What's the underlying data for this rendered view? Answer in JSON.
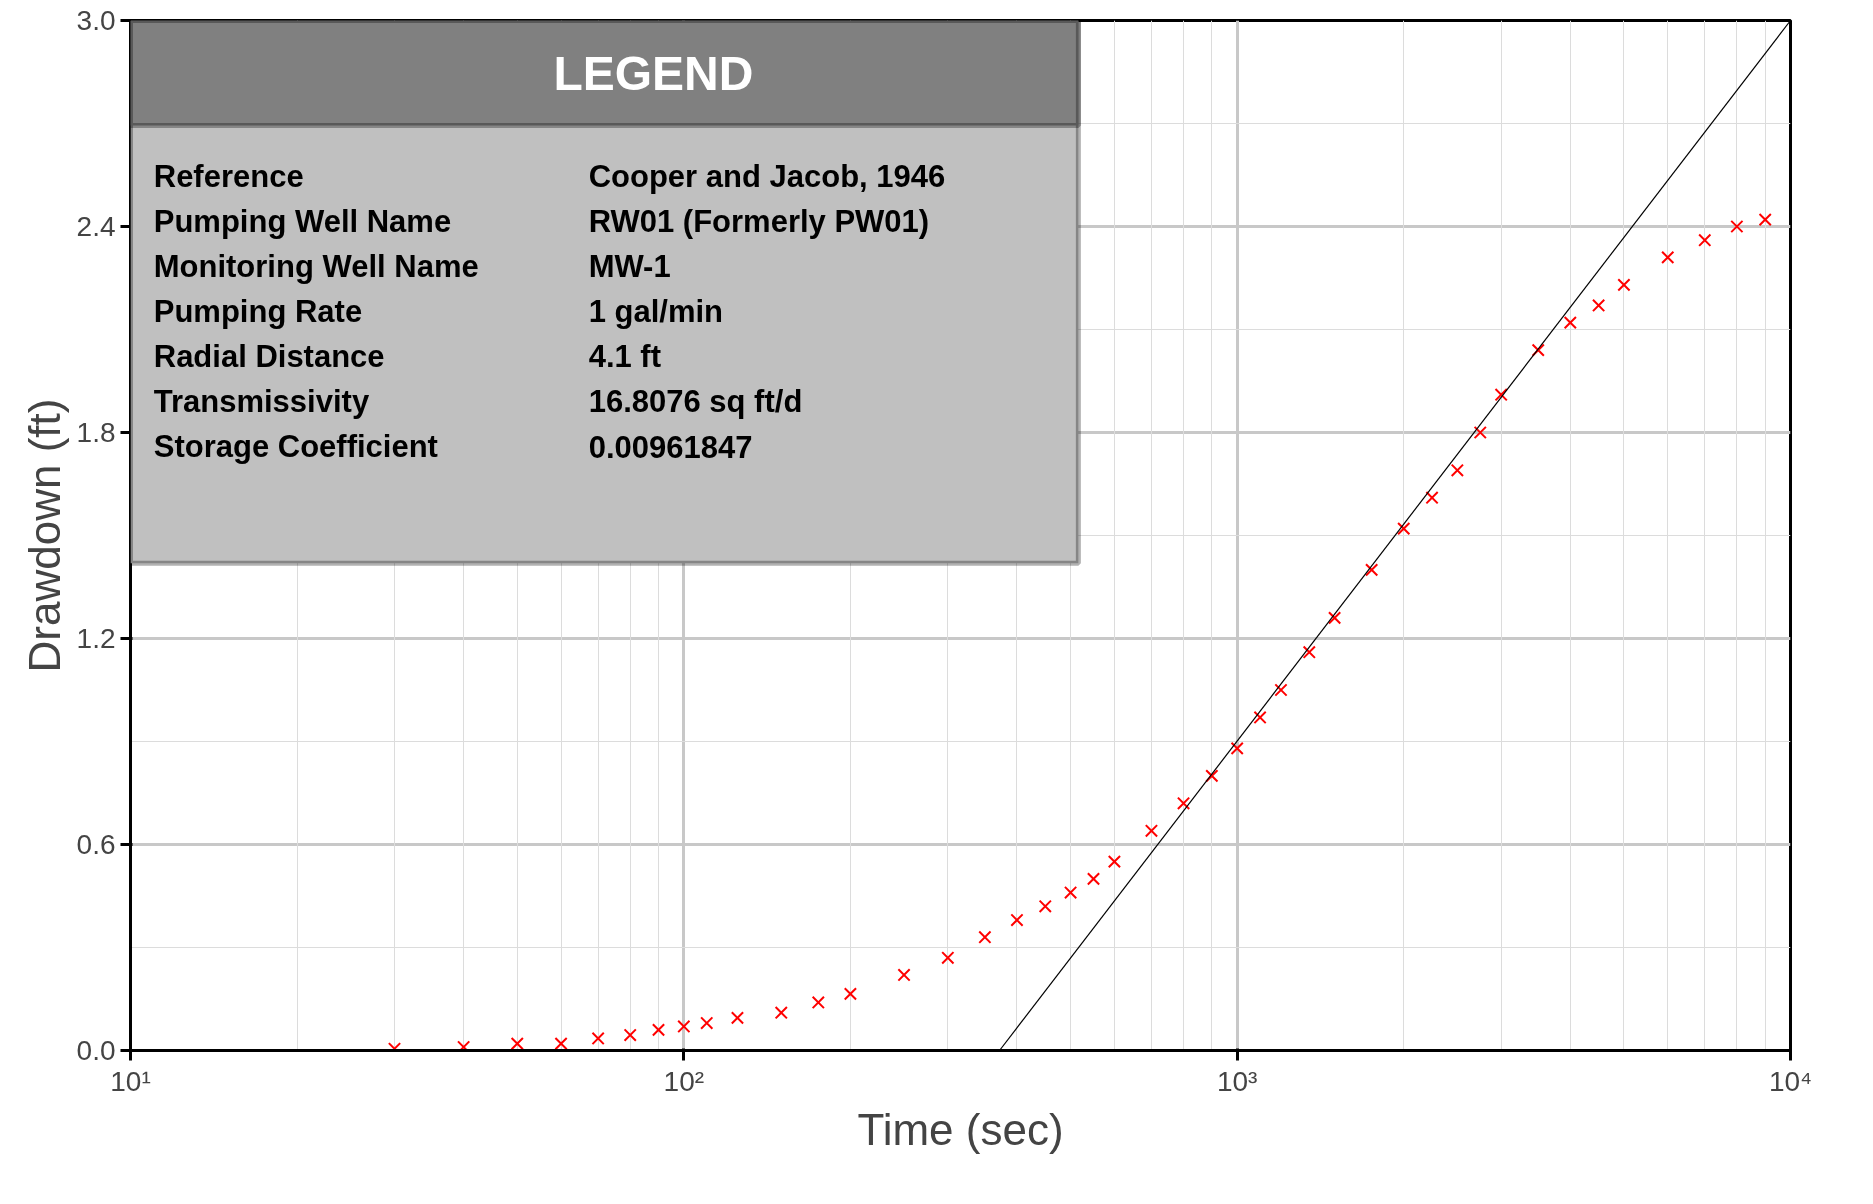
{
  "chart_data": {
    "type": "scatter",
    "xlabel": "Time (sec)",
    "ylabel": "Drawdown (ft)",
    "log": "x",
    "xlim": [
      10,
      10000
    ],
    "ylim": [
      0,
      3.0
    ],
    "xticks": [
      {
        "value": 10,
        "label": "10¹"
      },
      {
        "value": 100,
        "label": "10²"
      },
      {
        "value": 1000,
        "label": "10³"
      },
      {
        "value": 10000,
        "label": "10⁴"
      }
    ],
    "yticks": [
      {
        "value": 0,
        "label": "0.0"
      },
      {
        "value": 0.6,
        "label": "0.6"
      },
      {
        "value": 1.2,
        "label": "1.2"
      },
      {
        "value": 1.8,
        "label": "1.8"
      },
      {
        "value": 2.4,
        "label": "2.4"
      },
      {
        "value": 3.0,
        "label": "3.0"
      }
    ],
    "grid": true,
    "marker": "cross",
    "annotations": [
      "LEGEND",
      "Reference",
      "Cooper and Jacob, 1946",
      "Pumping Well Name",
      "RW01 (Formerly PW01)",
      "Monitoring Well Name",
      "MW-1",
      "Pumping Rate",
      "1  gal/min",
      "Radial Distance",
      "4.1  ft",
      "Transmissivity",
      "16.8076  sq ft/d",
      "Storage Coefficient",
      "0.00961847"
    ],
    "series": [
      {
        "type": "scatter",
        "color": "#ff0000",
        "x": [
          30,
          40,
          50,
          60,
          70,
          80,
          90,
          100,
          110,
          125,
          150,
          175,
          200,
          250,
          300,
          350,
          400,
          450,
          500,
          550,
          600,
          700,
          800,
          900,
          1000,
          1100,
          1200,
          1350,
          1500,
          1750,
          2000,
          2250,
          2500,
          2750,
          3000,
          3500,
          4000,
          4500,
          5000,
          6000,
          7000,
          8000,
          9000
        ],
        "values": [
          0.005,
          0.01,
          0.02,
          0.02,
          0.035,
          0.045,
          0.06,
          0.07,
          0.08,
          0.095,
          0.11,
          0.14,
          0.165,
          0.22,
          0.27,
          0.33,
          0.38,
          0.42,
          0.46,
          0.5,
          0.55,
          0.64,
          0.72,
          0.8,
          0.88,
          0.97,
          1.05,
          1.16,
          1.26,
          1.4,
          1.52,
          1.61,
          1.69,
          1.8,
          1.91,
          2.04,
          2.12,
          2.17,
          2.23,
          2.31,
          2.36,
          2.4,
          2.42
        ]
      },
      {
        "type": "line",
        "marker": "none",
        "color": "#000000",
        "x": [
          372,
          10000
        ],
        "values": [
          0,
          3.0
        ]
      }
    ]
  }
}
